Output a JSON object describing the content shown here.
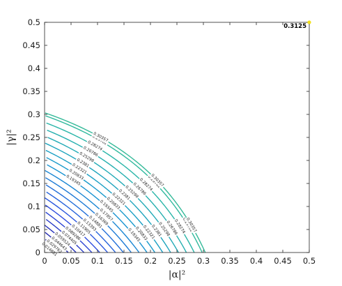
{
  "chart_data": {
    "type": "contour",
    "xlabel": "|α|²",
    "ylabel": "|γ|²",
    "xlim": [
      0,
      0.5
    ],
    "ylim": [
      0,
      0.5
    ],
    "xticks": [
      "0",
      "0.05",
      "0.1",
      "0.15",
      "0.2",
      "0.25",
      "0.3",
      "0.35",
      "0.4",
      "0.45",
      "0.5"
    ],
    "yticks": [
      "0",
      "0.05",
      "0.1",
      "0.15",
      "0.2",
      "0.25",
      "0.3",
      "0.35",
      "0.4",
      "0.45",
      "0.5"
    ],
    "levels": [
      0.014881,
      0.029762,
      0.044643,
      0.059524,
      0.074405,
      0.089286,
      0.10417,
      0.11905,
      0.13393,
      0.14881,
      0.16369,
      0.17857,
      0.19345,
      0.20833,
      0.22321,
      0.2381,
      0.25298,
      0.26786,
      0.28274,
      0.29762,
      0.30357
    ],
    "level_labels": [
      "0.014881",
      "0.029762",
      "0.044643",
      "0.059524",
      "0.074405",
      "0.089286",
      "0.10417",
      "0.11905",
      "0.13393",
      "0.14881",
      "0.16369",
      "0.17857",
      "0.19345",
      "0.20833",
      "0.22321",
      "0.2381",
      "0.25298",
      "0.26786",
      "0.28274",
      "0.29762",
      "0.30357"
    ],
    "colormap": [
      "#1a1496",
      "#2c4ce0",
      "#1495d0",
      "#2ab7a5",
      "#6dc75b",
      "#c6c22e",
      "#f2e01c"
    ],
    "max_point": {
      "x": 0.5,
      "y": 0.5,
      "label": "0.3125"
    },
    "marker_color": "#f2e01c",
    "grid": false
  }
}
